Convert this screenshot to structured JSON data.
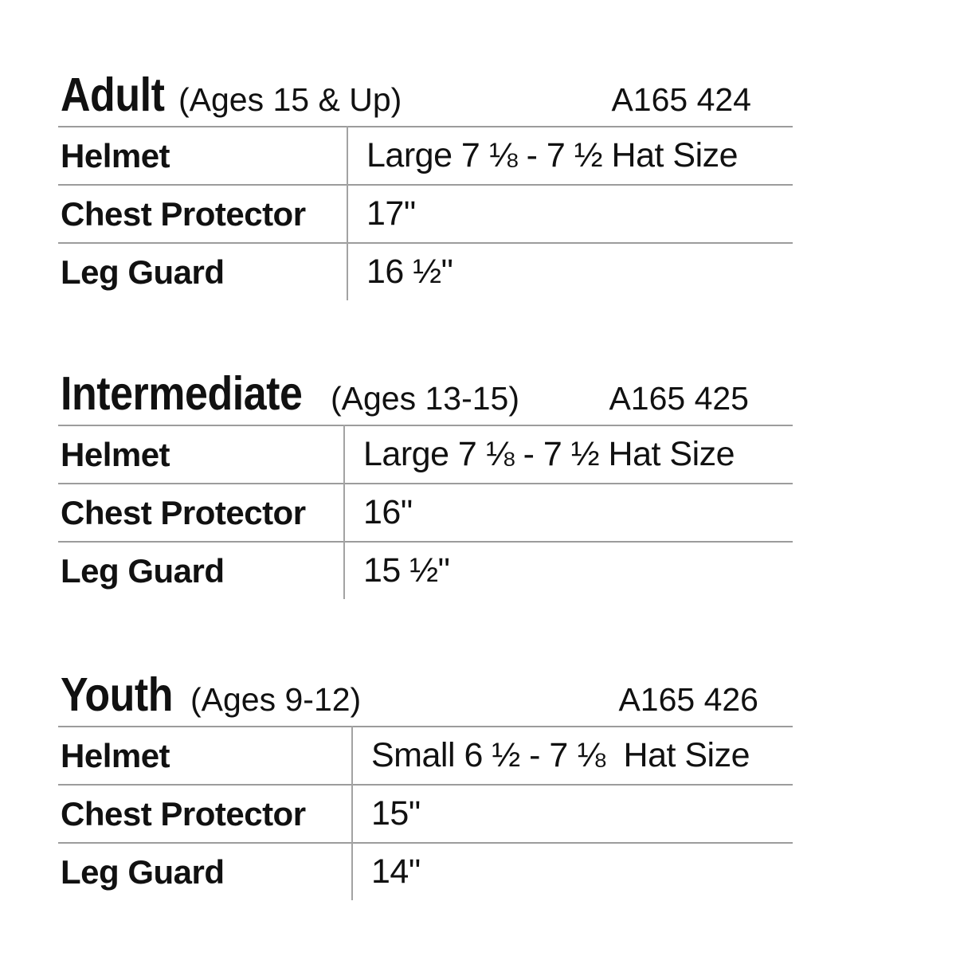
{
  "styles": {
    "background": "#ffffff",
    "text_color": "#111111",
    "line_color": "#9c9c9c"
  },
  "tables": [
    {
      "title": "Adult",
      "subtitle": "(Ages 15 & Up)",
      "code": "A165 424",
      "rows": [
        {
          "label": "Helmet",
          "value": "Large 7 ⅛ - 7 ½ Hat Size"
        },
        {
          "label": "Chest Protector",
          "value": "17\""
        },
        {
          "label": "Leg Guard",
          "value": "16 ½\""
        }
      ]
    },
    {
      "title": "Intermediate",
      "subtitle": "(Ages 13-15)",
      "code": "A165 425",
      "rows": [
        {
          "label": "Helmet",
          "value": "Large 7 ⅛ - 7 ½ Hat Size"
        },
        {
          "label": "Chest Protector",
          "value": "16\""
        },
        {
          "label": "Leg Guard",
          "value": "15 ½\""
        }
      ]
    },
    {
      "title": "Youth",
      "subtitle": "(Ages 9-12)",
      "code": "A165 426",
      "rows": [
        {
          "label": "Helmet",
          "value": "Small 6 ½ - 7 ⅛  Hat Size"
        },
        {
          "label": "Chest Protector",
          "value": "15\""
        },
        {
          "label": "Leg Guard",
          "value": "14\""
        }
      ]
    }
  ]
}
